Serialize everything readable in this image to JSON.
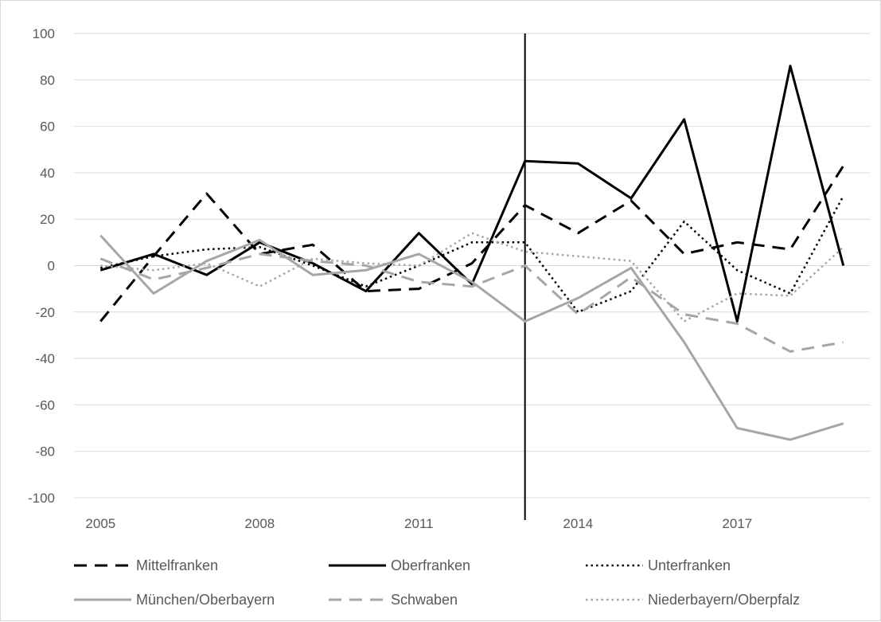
{
  "chart_data": {
    "type": "line",
    "title": "",
    "xlabel": "",
    "ylabel": "",
    "x": [
      2005,
      2006,
      2007,
      2008,
      2009,
      2010,
      2011,
      2012,
      2013,
      2014,
      2015,
      2016,
      2017,
      2018,
      2019
    ],
    "x_tick_labels": [
      "2005",
      "2008",
      "2011",
      "2014",
      "2017"
    ],
    "y_tick_labels": [
      "100",
      "80",
      "60",
      "40",
      "20",
      "0",
      "-20",
      "-40",
      "-60",
      "-80",
      "-100"
    ],
    "ylim": [
      -100,
      100
    ],
    "grid": "horizontal",
    "legend_position": "bottom",
    "vertical_marker_x": 2013,
    "series": [
      {
        "name": "Mittelfranken",
        "color": "#000000",
        "style": "dashed",
        "values": [
          -24,
          4,
          31,
          5,
          9,
          -11,
          -10,
          1,
          26,
          14,
          28,
          5,
          10,
          7,
          43
        ]
      },
      {
        "name": "Oberfranken",
        "color": "#000000",
        "style": "solid",
        "values": [
          -2,
          5,
          -4,
          10,
          1,
          -11,
          14,
          -8,
          45,
          44,
          29,
          63,
          -24,
          86,
          0
        ]
      },
      {
        "name": "Unterfranken",
        "color": "#000000",
        "style": "dotted",
        "values": [
          -1,
          4,
          7,
          8,
          0,
          -9,
          0,
          10,
          10,
          -20,
          -11,
          19,
          -2,
          -12,
          30
        ]
      },
      {
        "name": "München/Oberbayern",
        "color": "#a6a6a6",
        "style": "solid",
        "values": [
          13,
          -12,
          2,
          11,
          -4,
          -2,
          5,
          -7,
          -24,
          -14,
          -1,
          -33,
          -70,
          -75,
          -68
        ]
      },
      {
        "name": "Schwaben",
        "color": "#a6a6a6",
        "style": "dashed",
        "values": [
          3,
          -6,
          -1,
          5,
          2,
          0,
          -7,
          -9,
          0,
          -21,
          -5,
          -21,
          -25,
          -37,
          -33
        ]
      },
      {
        "name": "Niederbayern/Oberpfalz",
        "color": "#a6a6a6",
        "style": "dotted",
        "values": [
          0,
          -2,
          1,
          -9,
          3,
          1,
          0,
          14,
          6,
          4,
          2,
          -24,
          -12,
          -13,
          8
        ]
      }
    ]
  }
}
